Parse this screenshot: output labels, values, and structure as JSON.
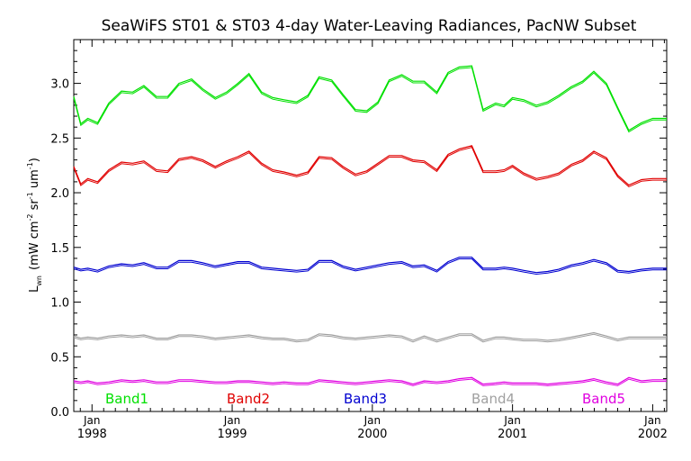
{
  "chart_data": {
    "type": "line",
    "title": "SeaWiFS ST01 & ST03 4-day Water-Leaving Radiances, PacNW Subset",
    "ylabel": {
      "base": "L",
      "sub": "wn",
      "unit_open": "(mW cm",
      "exp1": "-2",
      "unit_sr": " sr",
      "exp2": "-1",
      "unit_um": " um",
      "exp3": "-1",
      "unit_close": ")"
    },
    "ylim": [
      0,
      3.4
    ],
    "xlim": [
      1997.87,
      2002.1
    ],
    "y_ticks": [
      0.0,
      0.5,
      1.0,
      1.5,
      2.0,
      2.5,
      3.0
    ],
    "y_tick_labels": [
      "0.0",
      "0.5",
      "1.0",
      "1.5",
      "2.0",
      "2.5",
      "3.0"
    ],
    "x_ticks": [
      {
        "value": 1998,
        "month": "Jan",
        "year": "1998"
      },
      {
        "value": 1999,
        "month": "Jan",
        "year": "1999"
      },
      {
        "value": 2000,
        "month": "Jan",
        "year": "2000"
      },
      {
        "value": 2001,
        "month": "Jan",
        "year": "2001"
      },
      {
        "value": 2002,
        "month": "Jan",
        "year": "2002"
      }
    ],
    "x": [
      1997.87,
      1997.92,
      1997.97,
      1998.04,
      1998.12,
      1998.21,
      1998.29,
      1998.37,
      1998.46,
      1998.54,
      1998.62,
      1998.71,
      1998.79,
      1998.88,
      1998.96,
      1999.04,
      1999.12,
      1999.21,
      1999.29,
      1999.37,
      1999.46,
      1999.54,
      1999.62,
      1999.71,
      1999.79,
      1999.88,
      1999.96,
      2000.04,
      2000.12,
      2000.21,
      2000.29,
      2000.37,
      2000.46,
      2000.54,
      2000.62,
      2000.71,
      2000.79,
      2000.88,
      2000.94,
      2001.0,
      2001.08,
      2001.17,
      2001.25,
      2001.33,
      2001.42,
      2001.5,
      2001.58,
      2001.67,
      2001.75,
      2001.83,
      2001.92,
      2002.0,
      2002.05,
      2002.1
    ],
    "series": [
      {
        "name": "Band1",
        "color": "#00e000",
        "values": [
          2.88,
          2.63,
          2.68,
          2.64,
          2.82,
          2.93,
          2.92,
          2.98,
          2.88,
          2.88,
          3.0,
          3.04,
          2.95,
          2.87,
          2.92,
          3.0,
          3.09,
          2.92,
          2.87,
          2.85,
          2.83,
          2.89,
          3.06,
          3.03,
          2.9,
          2.76,
          2.75,
          2.83,
          3.03,
          3.08,
          3.02,
          3.02,
          2.92,
          3.1,
          3.15,
          3.16,
          2.76,
          2.82,
          2.8,
          2.87,
          2.85,
          2.8,
          2.83,
          2.89,
          2.97,
          3.02,
          3.11,
          3.0,
          2.78,
          2.57,
          2.64,
          2.68,
          2.68,
          2.68
        ]
      },
      {
        "name": "Band2",
        "color": "#e00000",
        "values": [
          2.24,
          2.08,
          2.13,
          2.1,
          2.21,
          2.28,
          2.27,
          2.29,
          2.21,
          2.2,
          2.31,
          2.33,
          2.3,
          2.24,
          2.29,
          2.33,
          2.38,
          2.27,
          2.21,
          2.19,
          2.16,
          2.19,
          2.33,
          2.32,
          2.24,
          2.17,
          2.2,
          2.27,
          2.34,
          2.34,
          2.3,
          2.29,
          2.21,
          2.35,
          2.4,
          2.43,
          2.2,
          2.2,
          2.21,
          2.25,
          2.18,
          2.13,
          2.15,
          2.18,
          2.26,
          2.3,
          2.38,
          2.32,
          2.16,
          2.07,
          2.12,
          2.13,
          2.13,
          2.13
        ]
      },
      {
        "name": "Band3",
        "color": "#0000d0",
        "values": [
          1.32,
          1.3,
          1.31,
          1.29,
          1.33,
          1.35,
          1.34,
          1.36,
          1.32,
          1.32,
          1.38,
          1.38,
          1.36,
          1.33,
          1.35,
          1.37,
          1.37,
          1.32,
          1.31,
          1.3,
          1.29,
          1.3,
          1.38,
          1.38,
          1.33,
          1.3,
          1.32,
          1.34,
          1.36,
          1.37,
          1.33,
          1.34,
          1.29,
          1.37,
          1.41,
          1.41,
          1.31,
          1.31,
          1.32,
          1.31,
          1.29,
          1.27,
          1.28,
          1.3,
          1.34,
          1.36,
          1.39,
          1.36,
          1.29,
          1.28,
          1.3,
          1.31,
          1.31,
          1.31
        ]
      },
      {
        "name": "Band4",
        "color": "#a0a0a0",
        "values": [
          0.69,
          0.67,
          0.68,
          0.67,
          0.69,
          0.7,
          0.69,
          0.7,
          0.67,
          0.67,
          0.7,
          0.7,
          0.69,
          0.67,
          0.68,
          0.69,
          0.7,
          0.68,
          0.67,
          0.67,
          0.65,
          0.66,
          0.71,
          0.7,
          0.68,
          0.67,
          0.68,
          0.69,
          0.7,
          0.69,
          0.65,
          0.69,
          0.65,
          0.68,
          0.71,
          0.71,
          0.65,
          0.68,
          0.68,
          0.67,
          0.66,
          0.66,
          0.65,
          0.66,
          0.68,
          0.7,
          0.72,
          0.69,
          0.66,
          0.68,
          0.68,
          0.68,
          0.68,
          0.68
        ]
      },
      {
        "name": "Band5",
        "color": "#e000e0",
        "values": [
          0.28,
          0.27,
          0.28,
          0.26,
          0.27,
          0.29,
          0.28,
          0.29,
          0.27,
          0.27,
          0.29,
          0.29,
          0.28,
          0.27,
          0.27,
          0.28,
          0.28,
          0.27,
          0.26,
          0.27,
          0.26,
          0.26,
          0.29,
          0.28,
          0.27,
          0.26,
          0.27,
          0.28,
          0.29,
          0.28,
          0.25,
          0.28,
          0.27,
          0.28,
          0.3,
          0.31,
          0.25,
          0.26,
          0.27,
          0.26,
          0.26,
          0.26,
          0.25,
          0.26,
          0.27,
          0.28,
          0.3,
          0.27,
          0.25,
          0.31,
          0.28,
          0.29,
          0.29,
          0.29
        ]
      }
    ],
    "legend_placement": "bottom, inside plot, one label per band"
  }
}
